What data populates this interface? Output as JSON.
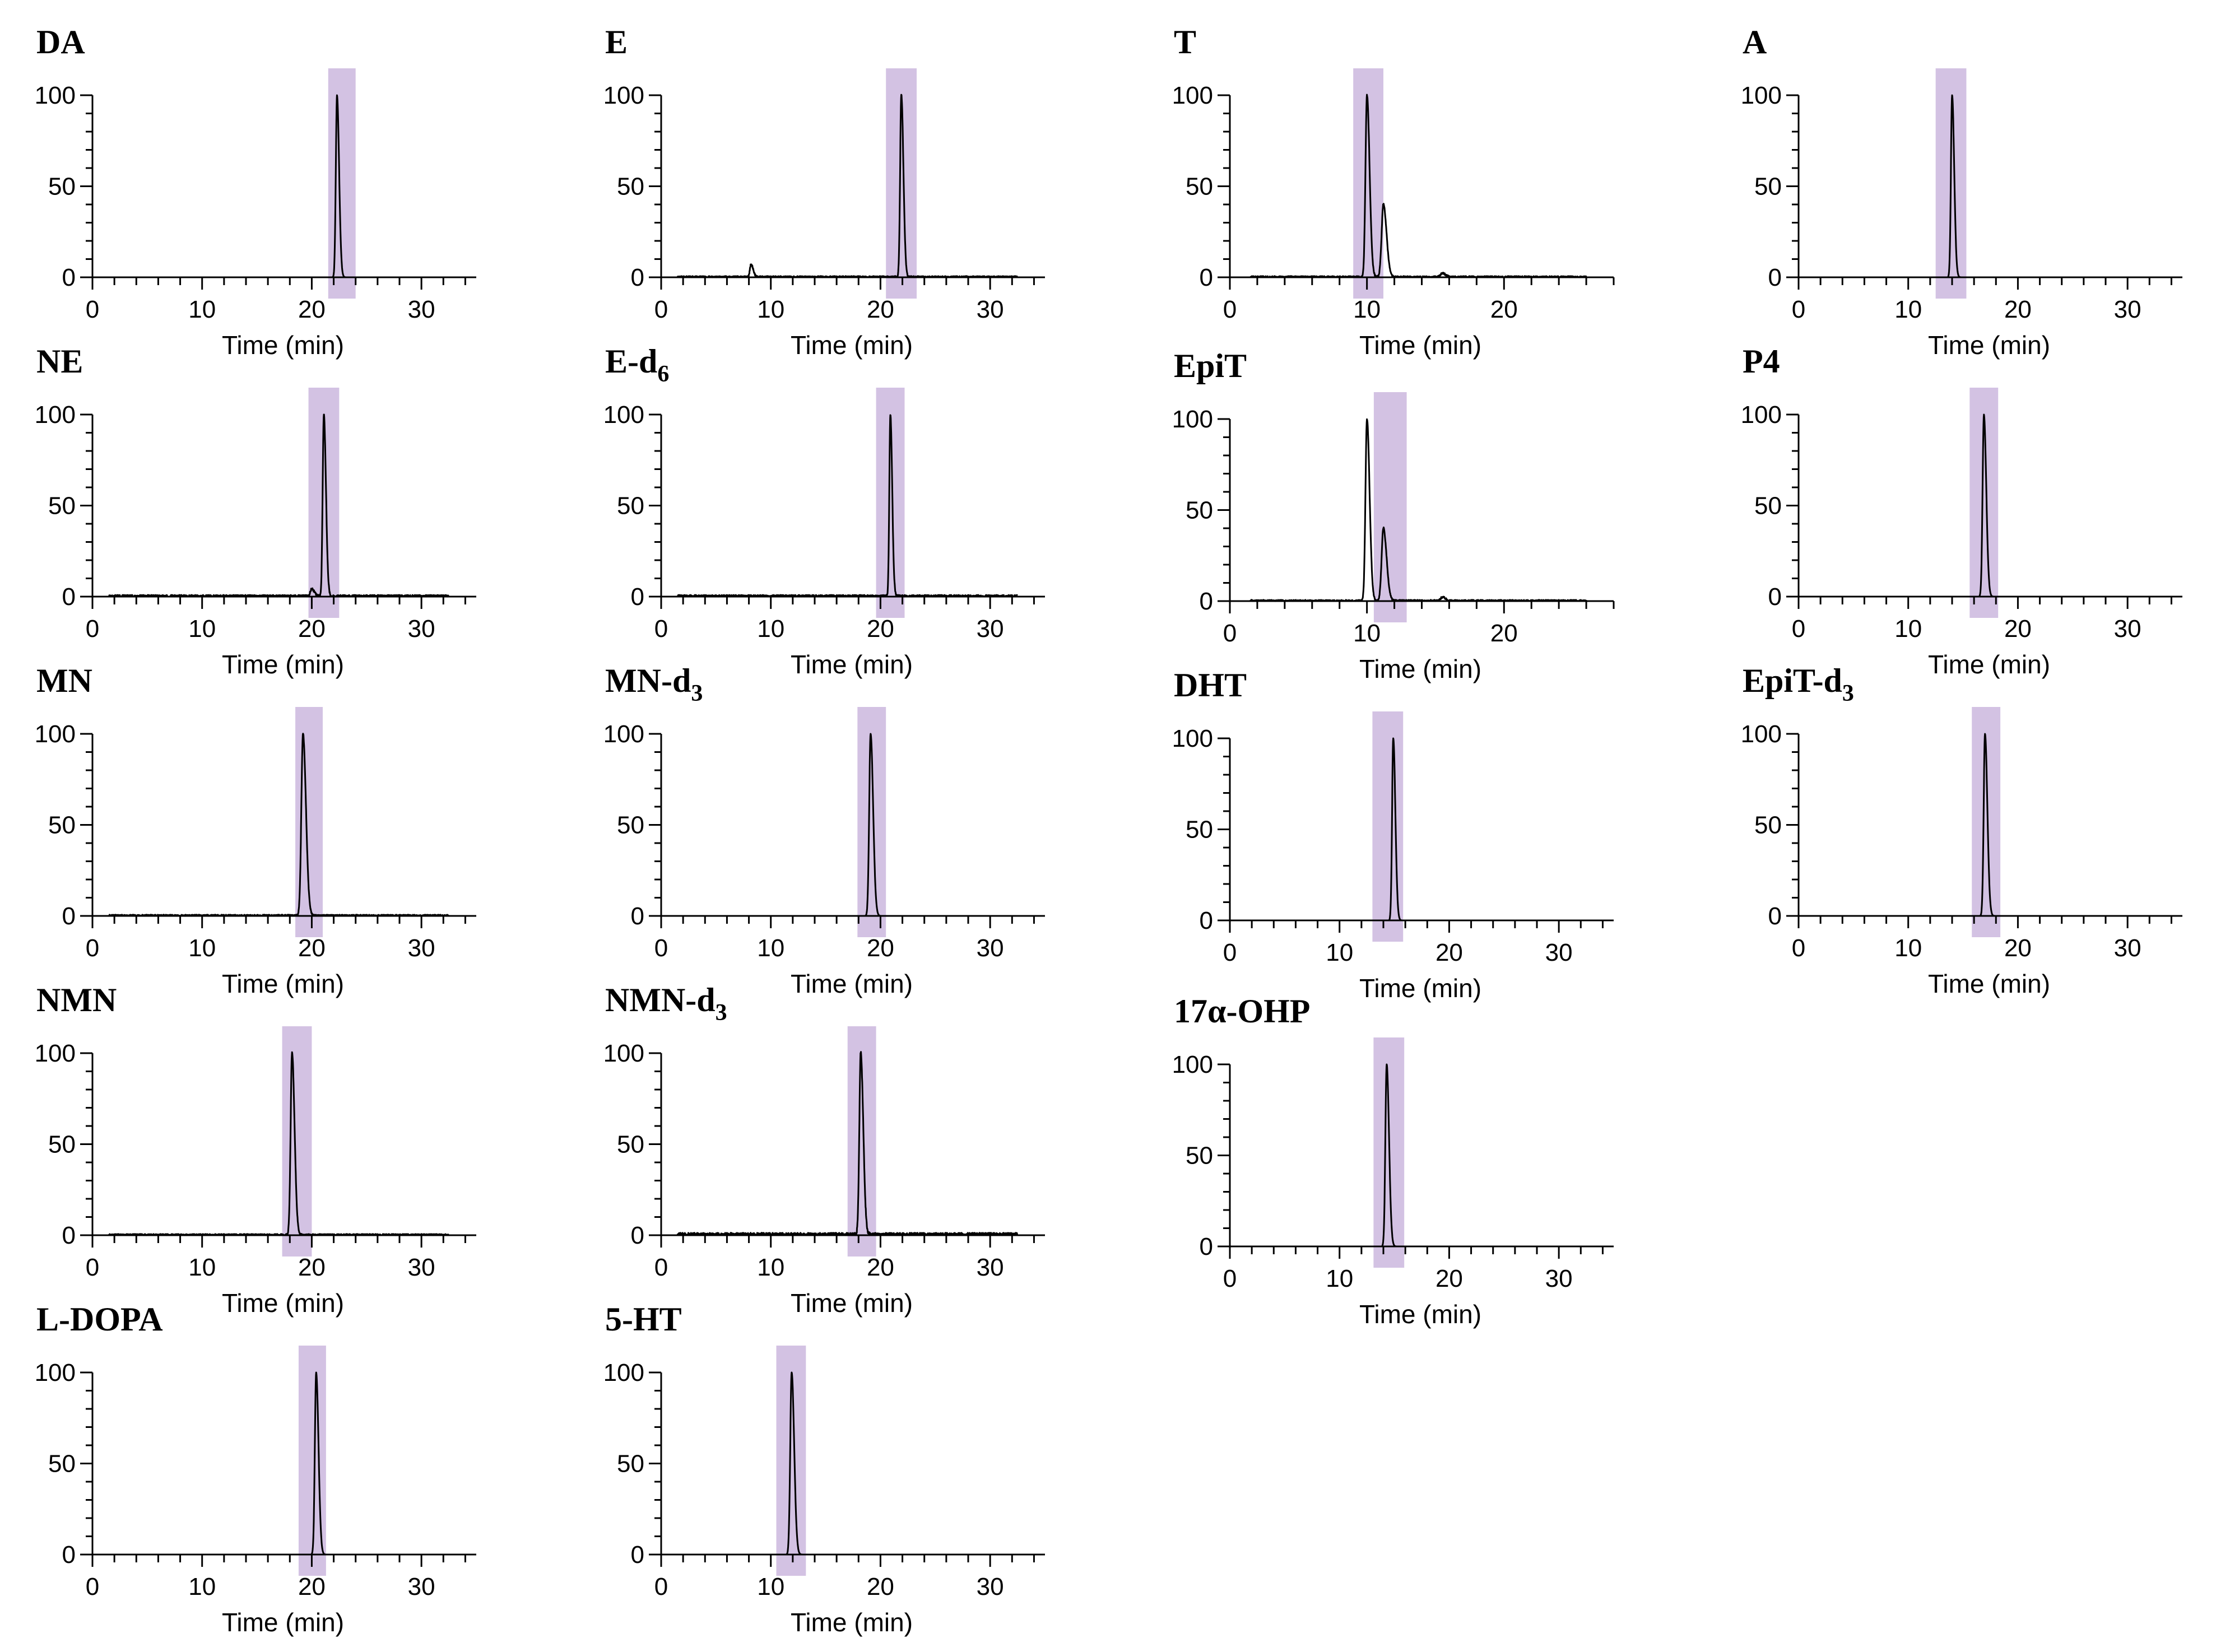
{
  "figure": {
    "xlabel": "Time (min)",
    "y_ticks": [
      "0",
      "50",
      "100"
    ]
  },
  "chart_data": [
    {
      "id": "DA",
      "type": "line",
      "title": "DA",
      "xlabel": "Time (min)",
      "xlim": [
        0,
        35
      ],
      "ylim": [
        0,
        100
      ],
      "x_ticks": [
        0,
        10,
        20,
        30
      ],
      "y_ticks": [
        0,
        50,
        100
      ],
      "highlight": [
        21.5,
        24
      ],
      "peaks": [
        {
          "rt": 22.3,
          "height": 100,
          "width": 0.25
        }
      ],
      "noise": 0.0
    },
    {
      "id": "NE",
      "type": "line",
      "title": "NE",
      "xlabel": "Time (min)",
      "xlim": [
        0,
        35
      ],
      "ylim": [
        0,
        100
      ],
      "x_ticks": [
        0,
        10,
        20,
        30
      ],
      "y_ticks": [
        0,
        50,
        100
      ],
      "highlight": [
        19.7,
        22.5
      ],
      "peaks": [
        {
          "rt": 21.1,
          "height": 100,
          "width": 0.25
        },
        {
          "rt": 20.0,
          "height": 4,
          "width": 0.3
        }
      ],
      "noise": 0.8
    },
    {
      "id": "MN",
      "type": "line",
      "title": "MN",
      "xlabel": "Time (min)",
      "xlim": [
        0,
        35
      ],
      "ylim": [
        0,
        100
      ],
      "x_ticks": [
        0,
        10,
        20,
        30
      ],
      "y_ticks": [
        0,
        50,
        100
      ],
      "highlight": [
        18.5,
        21
      ],
      "peaks": [
        {
          "rt": 19.2,
          "height": 100,
          "width": 0.35
        }
      ],
      "noise": 0.6
    },
    {
      "id": "NMN",
      "type": "line",
      "title": "NMN",
      "xlabel": "Time (min)",
      "xlim": [
        0,
        35
      ],
      "ylim": [
        0,
        100
      ],
      "x_ticks": [
        0,
        10,
        20,
        30
      ],
      "y_ticks": [
        0,
        50,
        100
      ],
      "highlight": [
        17.3,
        20
      ],
      "peaks": [
        {
          "rt": 18.2,
          "height": 100,
          "width": 0.3
        }
      ],
      "noise": 0.6
    },
    {
      "id": "L-DOPA",
      "type": "line",
      "title": "L-DOPA",
      "xlabel": "Time (min)",
      "xlim": [
        0,
        35
      ],
      "ylim": [
        0,
        100
      ],
      "x_ticks": [
        0,
        10,
        20,
        30
      ],
      "y_ticks": [
        0,
        50,
        100
      ],
      "highlight": [
        18.8,
        21.3
      ],
      "peaks": [
        {
          "rt": 20.4,
          "height": 100,
          "width": 0.28
        }
      ],
      "noise": 0.0
    },
    {
      "id": "E",
      "type": "line",
      "title": "E",
      "xlabel": "Time (min)",
      "xlim": [
        0,
        35
      ],
      "ylim": [
        0,
        100
      ],
      "x_ticks": [
        0,
        10,
        20,
        30
      ],
      "y_ticks": [
        0,
        50,
        100
      ],
      "highlight": [
        20.5,
        23.3
      ],
      "peaks": [
        {
          "rt": 21.9,
          "height": 100,
          "width": 0.25
        },
        {
          "rt": 8.2,
          "height": 7,
          "width": 0.25
        }
      ],
      "noise": 0.6
    },
    {
      "id": "E-d6",
      "type": "line",
      "title": "E-d",
      "title_sub": "6",
      "xlabel": "Time (min)",
      "xlim": [
        0,
        35
      ],
      "ylim": [
        0,
        100
      ],
      "x_ticks": [
        0,
        10,
        20,
        30
      ],
      "y_ticks": [
        0,
        50,
        100
      ],
      "highlight": [
        19.6,
        22.2
      ],
      "peaks": [
        {
          "rt": 20.9,
          "height": 100,
          "width": 0.22
        }
      ],
      "noise": 0.8
    },
    {
      "id": "MN-d3",
      "type": "line",
      "title": "MN-d",
      "title_sub": "3",
      "xlabel": "Time (min)",
      "xlim": [
        0,
        35
      ],
      "ylim": [
        0,
        100
      ],
      "x_ticks": [
        0,
        10,
        20,
        30
      ],
      "y_ticks": [
        0,
        50,
        100
      ],
      "highlight": [
        17.9,
        20.5
      ],
      "peaks": [
        {
          "rt": 19.1,
          "height": 100,
          "width": 0.3
        }
      ],
      "noise": 0.0
    },
    {
      "id": "NMN-d3",
      "type": "line",
      "title": "NMN-d",
      "title_sub": "3",
      "xlabel": "Time (min)",
      "xlim": [
        0,
        35
      ],
      "ylim": [
        0,
        100
      ],
      "x_ticks": [
        0,
        10,
        20,
        30
      ],
      "y_ticks": [
        0,
        50,
        100
      ],
      "highlight": [
        17.0,
        19.6
      ],
      "peaks": [
        {
          "rt": 18.2,
          "height": 100,
          "width": 0.3
        }
      ],
      "noise": 1.2
    },
    {
      "id": "5-HT",
      "type": "line",
      "title": "5-HT",
      "xlabel": "Time (min)",
      "xlim": [
        0,
        35
      ],
      "ylim": [
        0,
        100
      ],
      "x_ticks": [
        0,
        10,
        20,
        30
      ],
      "y_ticks": [
        0,
        50,
        100
      ],
      "highlight": [
        10.5,
        13.2
      ],
      "peaks": [
        {
          "rt": 11.9,
          "height": 100,
          "width": 0.3
        }
      ],
      "noise": 0.0
    },
    {
      "id": "T",
      "type": "line",
      "title": "T",
      "xlabel": "Time (min)",
      "xlim": [
        0,
        28
      ],
      "ylim": [
        0,
        100
      ],
      "x_ticks": [
        0,
        10,
        20
      ],
      "y_ticks": [
        0,
        50,
        100
      ],
      "highlight": [
        9.0,
        11.2
      ],
      "peaks": [
        {
          "rt": 10.0,
          "height": 100,
          "width": 0.25
        },
        {
          "rt": 11.2,
          "height": 40,
          "width": 0.3
        },
        {
          "rt": 15.5,
          "height": 2,
          "width": 0.3
        }
      ],
      "noise": 0.6
    },
    {
      "id": "EpiT",
      "type": "line",
      "title": "EpiT",
      "xlabel": "Time (min)",
      "xlim": [
        0,
        28
      ],
      "ylim": [
        0,
        100
      ],
      "x_ticks": [
        0,
        10,
        20
      ],
      "y_ticks": [
        0,
        50,
        100
      ],
      "highlight": [
        10.5,
        12.9
      ],
      "peaks": [
        {
          "rt": 10.0,
          "height": 100,
          "width": 0.25
        },
        {
          "rt": 11.2,
          "height": 40,
          "width": 0.3
        },
        {
          "rt": 15.5,
          "height": 2,
          "width": 0.3
        }
      ],
      "noise": 0.6
    },
    {
      "id": "DHT",
      "type": "line",
      "title": "DHT",
      "xlabel": "Time (min)",
      "xlim": [
        0,
        35
      ],
      "ylim": [
        0,
        100
      ],
      "x_ticks": [
        0,
        10,
        20,
        30
      ],
      "y_ticks": [
        0,
        50,
        100
      ],
      "highlight": [
        13.0,
        15.8
      ],
      "peaks": [
        {
          "rt": 14.9,
          "height": 100,
          "width": 0.25
        }
      ],
      "noise": 0.0
    },
    {
      "id": "17a-OHP",
      "type": "line",
      "title": "17α-OHP",
      "xlabel": "Time (min)",
      "xlim": [
        0,
        35
      ],
      "ylim": [
        0,
        100
      ],
      "x_ticks": [
        0,
        10,
        20,
        30
      ],
      "y_ticks": [
        0,
        50,
        100
      ],
      "highlight": [
        13.1,
        15.9
      ],
      "peaks": [
        {
          "rt": 14.3,
          "height": 100,
          "width": 0.28
        }
      ],
      "noise": 0.0
    },
    {
      "id": "A",
      "type": "line",
      "title": "A",
      "xlabel": "Time (min)",
      "xlim": [
        0,
        35
      ],
      "ylim": [
        0,
        100
      ],
      "x_ticks": [
        0,
        10,
        20,
        30
      ],
      "y_ticks": [
        0,
        50,
        100
      ],
      "highlight": [
        12.5,
        15.3
      ],
      "peaks": [
        {
          "rt": 14.0,
          "height": 100,
          "width": 0.25
        }
      ],
      "noise": 0.0
    },
    {
      "id": "P4",
      "type": "line",
      "title": "P4",
      "xlabel": "Time (min)",
      "xlim": [
        0,
        35
      ],
      "ylim": [
        0,
        100
      ],
      "x_ticks": [
        0,
        10,
        20,
        30
      ],
      "y_ticks": [
        0,
        50,
        100
      ],
      "highlight": [
        15.6,
        18.2
      ],
      "peaks": [
        {
          "rt": 16.9,
          "height": 100,
          "width": 0.28
        }
      ],
      "noise": 0.0
    },
    {
      "id": "EpiT-d3",
      "type": "line",
      "title": "EpiT-d",
      "title_sub": "3",
      "xlabel": "Time (min)",
      "xlim": [
        0,
        35
      ],
      "ylim": [
        0,
        100
      ],
      "x_ticks": [
        0,
        10,
        20,
        30
      ],
      "y_ticks": [
        0,
        50,
        100
      ],
      "highlight": [
        15.8,
        18.4
      ],
      "peaks": [
        {
          "rt": 17.0,
          "height": 100,
          "width": 0.28
        }
      ],
      "noise": 0.0
    }
  ]
}
